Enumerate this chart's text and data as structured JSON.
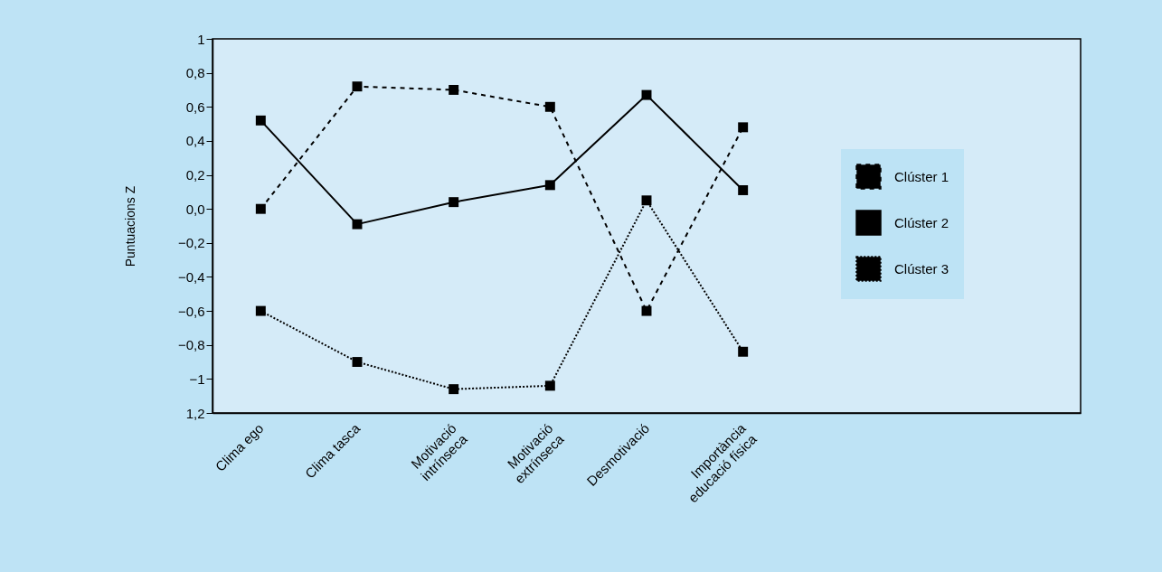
{
  "chart_data": {
    "type": "line",
    "ylabel": "Puntuacions Z",
    "categories": [
      "Clima ego",
      "Clima tasca",
      "Motivació\nintrínseca",
      "Motivació\nextrínseca",
      "Desmotivació",
      "Importància\neducació física",
      null,
      null,
      null
    ],
    "series": [
      {
        "name": "Clúster 1",
        "color": "#000000",
        "line_style": "dashed",
        "values": [
          0.0,
          0.72,
          0.7,
          0.6,
          -0.6,
          0.48,
          null,
          null,
          null
        ]
      },
      {
        "name": "Clúster 2",
        "color": "#000000",
        "line_style": "solid",
        "values": [
          0.52,
          -0.09,
          0.04,
          0.14,
          0.67,
          0.11,
          null,
          null,
          null
        ]
      },
      {
        "name": "Clúster 3",
        "color": "#000000",
        "line_style": "dotted",
        "values": [
          -0.6,
          -0.9,
          -1.06,
          -1.04,
          0.05,
          -0.84,
          null,
          null,
          null
        ]
      }
    ],
    "ylim": [
      -1.2,
      1
    ],
    "yticks": [
      1,
      {
        "value": 0.8,
        "label": "0,8"
      },
      {
        "value": 0.6,
        "label": "0,6"
      },
      {
        "value": 0.4,
        "label": "0,4"
      },
      {
        "value": 0.2,
        "label": "0,2"
      },
      {
        "value": 0,
        "label": "0,0"
      },
      {
        "value": -0.2,
        "label": "−0,2"
      },
      {
        "value": -0.4,
        "label": "−0,4"
      },
      {
        "value": -0.6,
        "label": "−0,6"
      },
      {
        "value": -0.8,
        "label": "−0,8"
      },
      {
        "value": -1,
        "label": "−1"
      },
      {
        "value": -1.2,
        "label": "1,2"
      }
    ],
    "marker": "square",
    "grid": false,
    "legend": "right"
  }
}
